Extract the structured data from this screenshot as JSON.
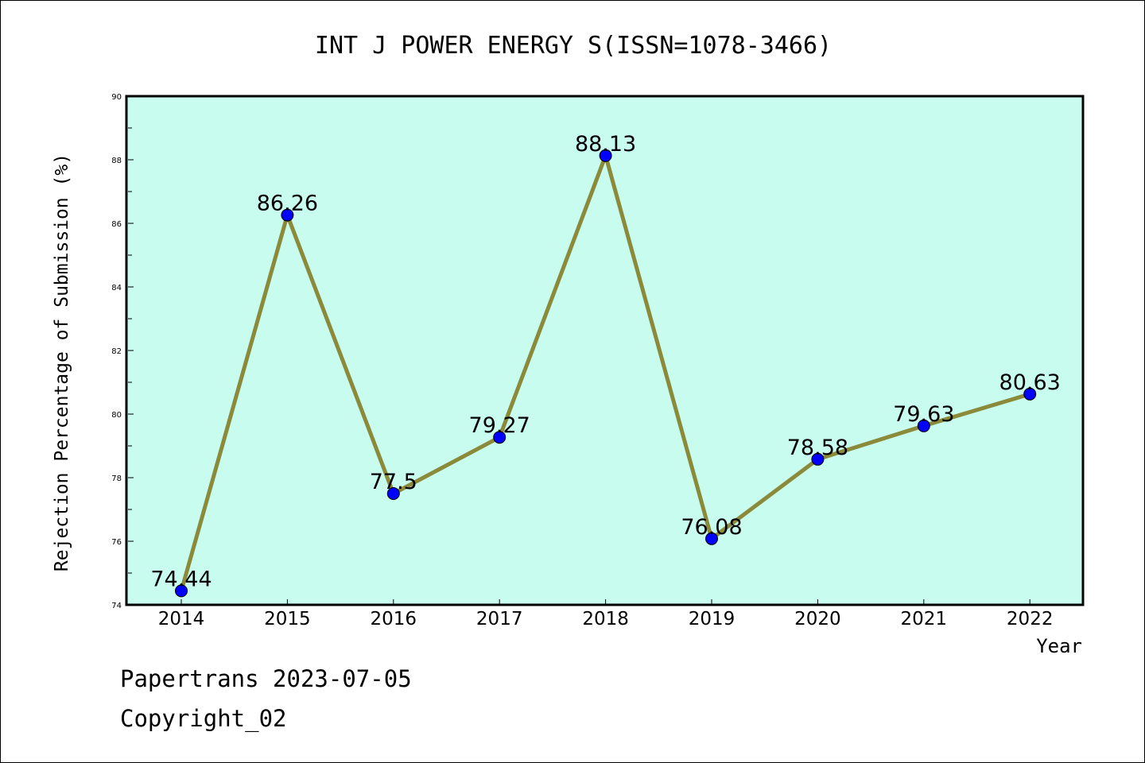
{
  "chart_data": {
    "type": "line",
    "title": "INT J POWER ENERGY S(ISSN=1078-3466)",
    "xlabel": "Year",
    "ylabel": "Rejection Percentage of Submission (%)",
    "categories": [
      "2014",
      "2015",
      "2016",
      "2017",
      "2018",
      "2019",
      "2020",
      "2021",
      "2022"
    ],
    "values": [
      74.44,
      86.26,
      77.5,
      79.27,
      88.13,
      76.08,
      78.58,
      79.63,
      80.63
    ],
    "data_labels": [
      "74.44",
      "86.26",
      "77.5",
      "79.27",
      "88.13",
      "76.08",
      "78.58",
      "79.63",
      "80.63"
    ],
    "ylim": [
      74,
      90
    ],
    "yticks": [
      "74",
      "76",
      "78",
      "80",
      "82",
      "84",
      "86",
      "88",
      "90"
    ],
    "grid": false,
    "colors": {
      "plot_background": "#c8fcee",
      "line": "#8b8a3a",
      "marker": "#0000ff"
    }
  },
  "footer": {
    "line1": "Papertrans 2023-07-05",
    "line2": "Copyright_02"
  }
}
